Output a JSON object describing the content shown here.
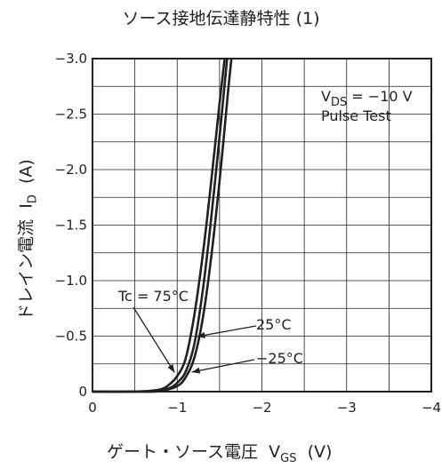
{
  "chart_data": {
    "type": "line",
    "title": "ソース接地伝達静特性 (1)",
    "xlabel_main": "ゲート・ソース電圧",
    "xlabel_sym": "V",
    "xlabel_sub": "GS",
    "xlabel_unit": "(V)",
    "ylabel_main": "ドレイン電流",
    "ylabel_sym": "I",
    "ylabel_sub": "D",
    "ylabel_unit": "(A)",
    "xlim": [
      0,
      -4
    ],
    "ylim": [
      0,
      -3.0
    ],
    "xticks": [
      0,
      -1,
      -2,
      -3,
      -4
    ],
    "xtick_labels": [
      "0",
      "−1",
      "−2",
      "−3",
      "−4"
    ],
    "yticks": [
      0,
      -0.5,
      -1.0,
      -1.5,
      -2.0,
      -2.5,
      -3.0
    ],
    "ytick_labels": [
      "0",
      "−0.5",
      "−1.0",
      "−1.5",
      "−2.0",
      "−2.5",
      "−3.0"
    ],
    "grid": true,
    "condition_line1_sym": "V",
    "condition_line1_sub": "DS",
    "condition_line1_value": " = −10 V",
    "condition_line2": "Pulse Test",
    "series": [
      {
        "name": "Tc = 75°C",
        "x": [
          0,
          -0.4,
          -0.6,
          -0.8,
          -0.9,
          -1.0,
          -1.1,
          -1.2,
          -1.3,
          -1.4,
          -1.5,
          -1.56
        ],
        "y": [
          0,
          0,
          -0.003,
          -0.02,
          -0.06,
          -0.14,
          -0.3,
          -0.68,
          -1.22,
          -1.88,
          -2.6,
          -3.0
        ]
      },
      {
        "name": "25°C",
        "x": [
          0,
          -0.5,
          -0.7,
          -0.9,
          -1.0,
          -1.1,
          -1.2,
          -1.3,
          -1.4,
          -1.5,
          -1.59
        ],
        "y": [
          0,
          0,
          -0.003,
          -0.03,
          -0.08,
          -0.18,
          -0.42,
          -0.9,
          -1.55,
          -2.3,
          -3.0
        ]
      },
      {
        "name": "−25°C",
        "x": [
          0,
          -0.6,
          -0.8,
          -1.0,
          -1.1,
          -1.2,
          -1.3,
          -1.4,
          -1.5,
          -1.6,
          -1.64
        ],
        "y": [
          0,
          0,
          -0.005,
          -0.05,
          -0.13,
          -0.3,
          -0.65,
          -1.2,
          -1.9,
          -2.7,
          -3.0
        ]
      }
    ],
    "annotations": [
      {
        "label": "Tc = 75°C",
        "series": 0,
        "at_y": -0.14
      },
      {
        "label": "25°C",
        "series": 1,
        "at_y": -0.48
      },
      {
        "label": "−25°C",
        "series": 2,
        "at_y": -0.2
      }
    ]
  }
}
